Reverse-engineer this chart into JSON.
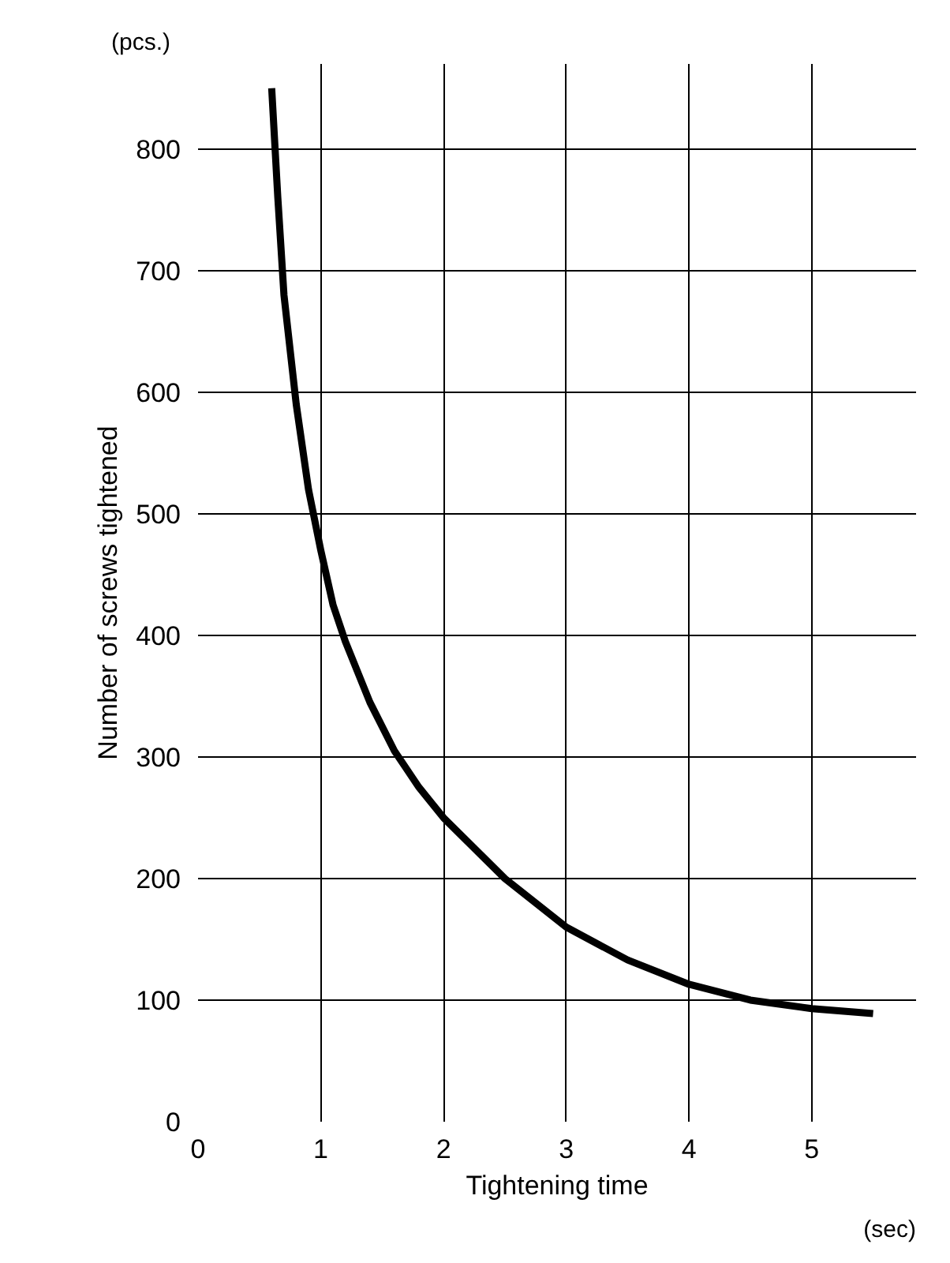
{
  "chart_data": {
    "type": "line",
    "xlabel": "Tightening time",
    "ylabel": "Number of screws tightened",
    "xlim": [
      0,
      5.85
    ],
    "ylim": [
      0,
      870
    ],
    "xticks": [
      0,
      1,
      2,
      3,
      4,
      5
    ],
    "yticks": [
      0,
      100,
      200,
      300,
      400,
      500,
      600,
      700,
      800
    ],
    "grid": true,
    "marker": "none",
    "line_style": "solid",
    "annotations": [
      "(pcs.)",
      "(sec)"
    ],
    "series": [
      {
        "color": "#000000",
        "x": [
          0.6,
          0.65,
          0.7,
          0.8,
          0.9,
          1.0,
          1.1,
          1.2,
          1.4,
          1.6,
          1.8,
          2.0,
          2.5,
          3.0,
          3.5,
          4.0,
          4.5,
          5.0,
          5.5
        ],
        "values": [
          850,
          760,
          680,
          590,
          520,
          470,
          425,
          395,
          345,
          305,
          275,
          250,
          200,
          160,
          133,
          113,
          100,
          93,
          89
        ]
      }
    ]
  }
}
